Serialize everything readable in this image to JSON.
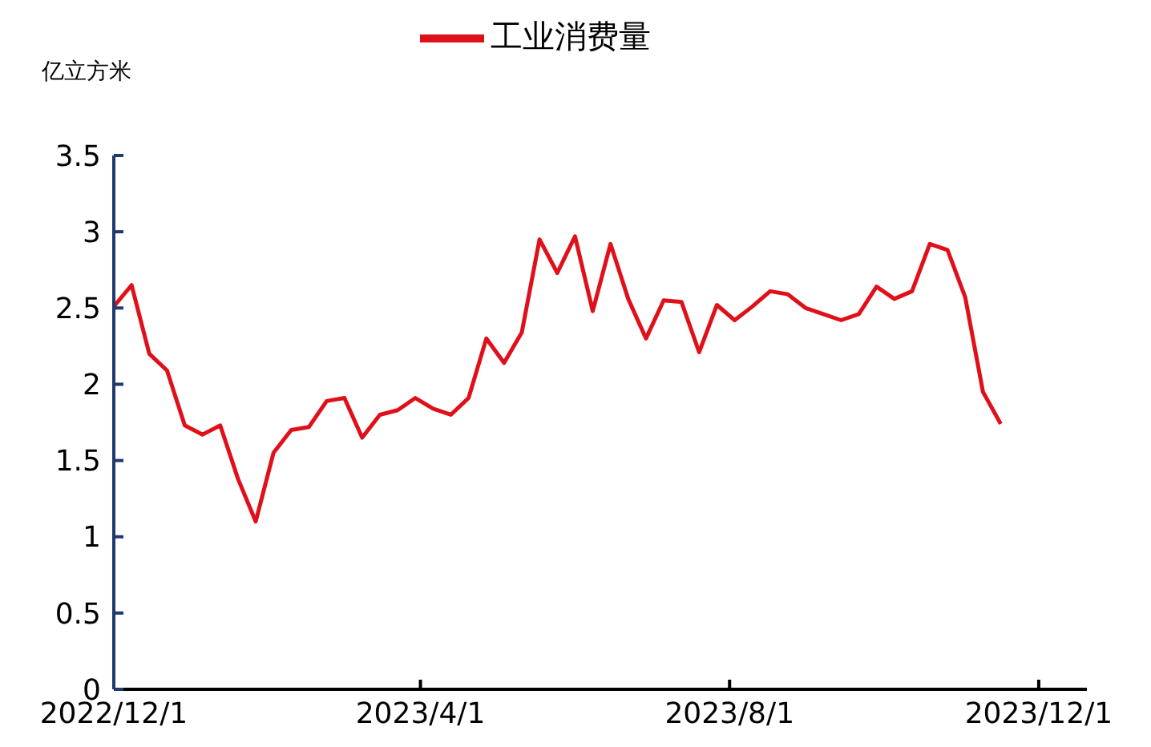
{
  "chart_data": {
    "type": "line",
    "ylabel": "亿立方米",
    "legend": "top",
    "x": [
      "2022-12-01",
      "2022-12-08",
      "2022-12-15",
      "2022-12-22",
      "2022-12-29",
      "2023-01-05",
      "2023-01-12",
      "2023-01-19",
      "2023-01-26",
      "2023-02-02",
      "2023-02-09",
      "2023-02-16",
      "2023-02-23",
      "2023-03-02",
      "2023-03-09",
      "2023-03-16",
      "2023-03-23",
      "2023-03-30",
      "2023-04-06",
      "2023-04-13",
      "2023-04-20",
      "2023-04-27",
      "2023-05-04",
      "2023-05-11",
      "2023-05-18",
      "2023-05-25",
      "2023-06-01",
      "2023-06-08",
      "2023-06-15",
      "2023-06-22",
      "2023-06-29",
      "2023-07-06",
      "2023-07-13",
      "2023-07-20",
      "2023-07-27",
      "2023-08-03",
      "2023-08-10",
      "2023-08-17",
      "2023-08-24",
      "2023-08-31",
      "2023-09-07",
      "2023-09-14",
      "2023-09-21",
      "2023-09-28",
      "2023-10-05",
      "2023-10-12",
      "2023-10-19",
      "2023-10-26",
      "2023-11-02",
      "2023-11-09",
      "2023-11-16"
    ],
    "series": [
      {
        "name": "工业消费量",
        "color": "#e0101a",
        "values": [
          2.51,
          2.65,
          2.2,
          2.09,
          1.73,
          1.67,
          1.73,
          1.38,
          1.1,
          1.55,
          1.7,
          1.72,
          1.89,
          1.91,
          1.65,
          1.8,
          1.83,
          1.91,
          1.84,
          1.8,
          1.91,
          2.3,
          2.14,
          2.34,
          2.95,
          2.73,
          2.97,
          2.48,
          2.92,
          2.56,
          2.3,
          2.55,
          2.54,
          2.21,
          2.52,
          2.42,
          2.51,
          2.61,
          2.59,
          2.5,
          2.46,
          2.42,
          2.46,
          2.64,
          2.56,
          2.61,
          2.92,
          2.88,
          2.57,
          1.95,
          1.74
        ]
      }
    ],
    "xlim": [
      "2022-12-01",
      "2023-12-20"
    ],
    "xticks": [
      {
        "value": "2022-12-01",
        "label": "2022/12/1"
      },
      {
        "value": "2023-04-01",
        "label": "2023/4/1"
      },
      {
        "value": "2023-08-01",
        "label": "2023/8/1"
      },
      {
        "value": "2023-12-01",
        "label": "2023/12/1"
      }
    ],
    "ylim": [
      0,
      3.5
    ],
    "yticks": [
      0,
      0.5,
      1,
      1.5,
      2,
      2.5,
      3,
      3.5
    ],
    "grid": false,
    "line_style": "solid",
    "marker": "none"
  }
}
